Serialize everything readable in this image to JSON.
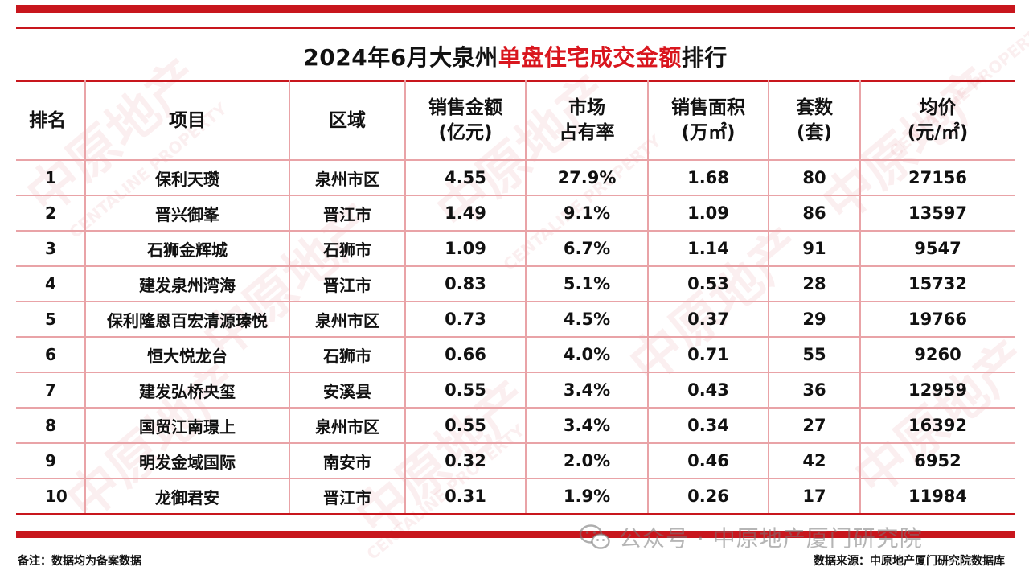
{
  "title": {
    "year_month": "2024年6月大泉州",
    "highlight": "单盘住宅成交金额",
    "suffix": "排行"
  },
  "headers": [
    {
      "line1": "排名",
      "line2": ""
    },
    {
      "line1": "项目",
      "line2": ""
    },
    {
      "line1": "区域",
      "line2": ""
    },
    {
      "line1": "销售金额",
      "line2": "(亿元)"
    },
    {
      "line1": "市场",
      "line2": "占有率"
    },
    {
      "line1": "销售面积",
      "line2": "(万㎡)"
    },
    {
      "line1": "套数",
      "line2": "(套)"
    },
    {
      "line1": "均价",
      "line2": "(元/㎡)"
    }
  ],
  "rows": [
    {
      "rank": "1",
      "project": "保利天瓒",
      "area": "泉州市区",
      "amount": "4.55",
      "share": "27.9%",
      "sqm": "1.68",
      "units": "80",
      "price": "27156"
    },
    {
      "rank": "2",
      "project": "晋兴御峯",
      "area": "晋江市",
      "amount": "1.49",
      "share": "9.1%",
      "sqm": "1.09",
      "units": "86",
      "price": "13597"
    },
    {
      "rank": "3",
      "project": "石狮金辉城",
      "area": "石狮市",
      "amount": "1.09",
      "share": "6.7%",
      "sqm": "1.14",
      "units": "91",
      "price": "9547"
    },
    {
      "rank": "4",
      "project": "建发泉州湾海",
      "area": "晋江市",
      "amount": "0.83",
      "share": "5.1%",
      "sqm": "0.53",
      "units": "28",
      "price": "15732"
    },
    {
      "rank": "5",
      "project": "保利隆恩百宏清源瑧悦",
      "area": "泉州市区",
      "amount": "0.73",
      "share": "4.5%",
      "sqm": "0.37",
      "units": "29",
      "price": "19766"
    },
    {
      "rank": "6",
      "project": "恒大悦龙台",
      "area": "石狮市",
      "amount": "0.66",
      "share": "4.0%",
      "sqm": "0.71",
      "units": "55",
      "price": "9260"
    },
    {
      "rank": "7",
      "project": "建发弘桥央玺",
      "area": "安溪县",
      "amount": "0.55",
      "share": "3.4%",
      "sqm": "0.43",
      "units": "36",
      "price": "12959"
    },
    {
      "rank": "8",
      "project": "国贸江南璟上",
      "area": "泉州市区",
      "amount": "0.55",
      "share": "3.4%",
      "sqm": "0.34",
      "units": "27",
      "price": "16392"
    },
    {
      "rank": "9",
      "project": "明发金域国际",
      "area": "南安市",
      "amount": "0.32",
      "share": "2.0%",
      "sqm": "0.46",
      "units": "42",
      "price": "6952"
    },
    {
      "rank": "10",
      "project": "龙御君安",
      "area": "晋江市",
      "amount": "0.31",
      "share": "1.9%",
      "sqm": "0.26",
      "units": "17",
      "price": "11984"
    }
  ],
  "footer": {
    "note": "备注：数据均为备案数据",
    "wechat": "公众号 · 中原地产厦门研究院",
    "source": "数据来源：中原地产厦门研究院数据库"
  },
  "watermark": {
    "text_cn": "中原地产",
    "text_en": "CENTALINE PROPERTY"
  },
  "colors": {
    "brand_red": "#c8161d",
    "highlight_red": "#d9161e",
    "grid_pink": "#e9a3a7"
  }
}
